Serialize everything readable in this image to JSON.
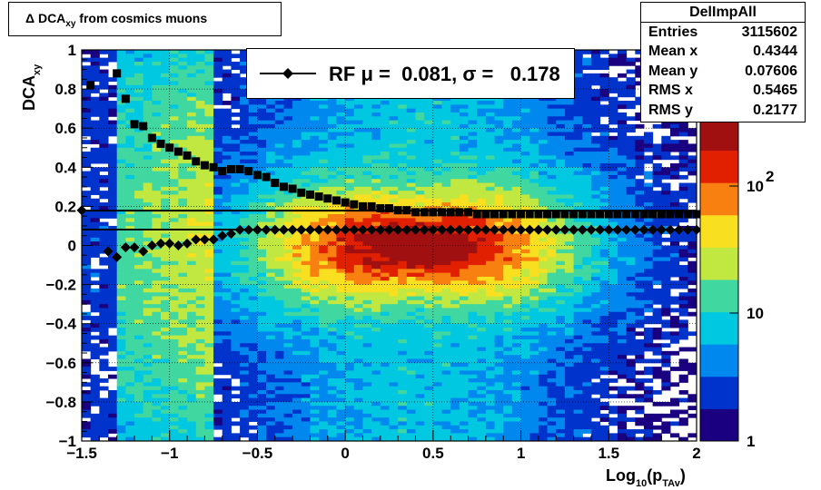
{
  "title": {
    "main": "Δ  DCA",
    "sub": "xy",
    "rest": "  from cosmics muons"
  },
  "stats": {
    "name": "DelImpAll",
    "rows": [
      {
        "label": "Entries",
        "value": "3115602"
      },
      {
        "label": "Mean x",
        "value": "0.4344"
      },
      {
        "label": "Mean y",
        "value": "0.07606"
      },
      {
        "label": "RMS x",
        "value": "0.5465"
      },
      {
        "label": "RMS y",
        "value": "0.2177"
      }
    ]
  },
  "legend": {
    "text": "RF μ =  0.081, σ =   0.178"
  },
  "chart_data": {
    "type": "heatmap",
    "xlabel": {
      "main": "Log",
      "sub1": "10",
      "mid": "(p",
      "sub2": "TAv",
      "end": ")"
    },
    "ylabel": {
      "main": "DCA",
      "sub": "xy"
    },
    "xlim": [
      -1.5,
      2
    ],
    "ylim": [
      -1,
      1
    ],
    "x_ticks": [
      "−1.5",
      "−1",
      "−0.5",
      "0",
      "0.5",
      "1",
      "1.5",
      "2"
    ],
    "y_ticks": [
      "−1",
      "−0.8",
      "−0.6",
      "−0.4",
      "−0.2",
      "0",
      "0.2",
      "0.4",
      "0.6",
      "0.8",
      "1"
    ],
    "z_scale": "log",
    "z_ticks": [
      "1",
      "10",
      "10^2"
    ],
    "grid": true,
    "colors": [
      "#1a0080",
      "#0033cc",
      "#0088ee",
      "#00c8e0",
      "#40d8a0",
      "#c0e840",
      "#f8e020",
      "#f88010",
      "#e02000",
      "#a01010"
    ],
    "peak": {
      "x": 0.4,
      "y": 0.0
    },
    "series": [
      {
        "name": "sigma",
        "marker": "square",
        "x": [
          -1.45,
          -1.3,
          -1.25,
          -1.2,
          -1.15,
          -1.1,
          -1.05,
          -1.0,
          -0.95,
          -0.9,
          -0.85,
          -0.8,
          -0.75,
          -0.7,
          -0.65,
          -0.6,
          -0.55,
          -0.5,
          -0.45,
          -0.4,
          -0.35,
          -0.3,
          -0.25,
          -0.2,
          -0.15,
          -0.1,
          -0.05,
          0.0,
          0.05,
          0.1,
          0.15,
          0.2,
          0.25,
          0.3,
          0.35,
          0.4,
          0.45,
          0.5,
          0.55,
          0.6,
          0.65,
          0.7,
          0.75,
          0.8,
          0.85,
          0.9,
          0.95,
          1.0,
          1.05,
          1.1,
          1.15,
          1.2,
          1.25,
          1.3,
          1.35,
          1.4,
          1.45,
          1.5,
          1.55,
          1.6,
          1.65,
          1.7,
          1.75,
          1.8,
          1.85,
          1.9,
          1.95,
          2.0
        ],
        "y": [
          0.82,
          0.88,
          0.75,
          0.62,
          0.61,
          0.55,
          0.52,
          0.5,
          0.48,
          0.46,
          0.43,
          0.41,
          0.4,
          0.38,
          0.39,
          0.39,
          0.38,
          0.36,
          0.35,
          0.32,
          0.3,
          0.29,
          0.27,
          0.26,
          0.25,
          0.24,
          0.23,
          0.22,
          0.21,
          0.2,
          0.2,
          0.19,
          0.19,
          0.18,
          0.18,
          0.17,
          0.17,
          0.17,
          0.17,
          0.17,
          0.17,
          0.17,
          0.16,
          0.16,
          0.16,
          0.16,
          0.16,
          0.16,
          0.16,
          0.16,
          0.16,
          0.16,
          0.16,
          0.16,
          0.16,
          0.16,
          0.16,
          0.16,
          0.16,
          0.16,
          0.16,
          0.16,
          0.16,
          0.16,
          0.16,
          0.16,
          0.16,
          0.16
        ]
      },
      {
        "name": "mean",
        "marker": "diamond",
        "x": [
          -1.5,
          -1.35,
          -1.3,
          -1.25,
          -1.2,
          -1.15,
          -1.1,
          -1.05,
          -1.0,
          -0.95,
          -0.9,
          -0.85,
          -0.8,
          -0.75,
          -0.7,
          -0.65,
          -0.6,
          -0.55,
          -0.5,
          -0.45,
          -0.4,
          -0.35,
          -0.3,
          -0.25,
          -0.2,
          -0.15,
          -0.1,
          -0.05,
          0.0,
          0.05,
          0.1,
          0.15,
          0.2,
          0.25,
          0.3,
          0.35,
          0.4,
          0.45,
          0.5,
          0.55,
          0.6,
          0.65,
          0.7,
          0.75,
          0.8,
          0.85,
          0.9,
          0.95,
          1.0,
          1.05,
          1.1,
          1.15,
          1.2,
          1.25,
          1.3,
          1.35,
          1.4,
          1.45,
          1.5,
          1.55,
          1.6,
          1.65,
          1.7,
          1.75,
          1.8,
          1.85,
          1.9,
          1.95,
          2.0
        ],
        "y": [
          0.18,
          -0.03,
          -0.06,
          -0.01,
          -0.01,
          -0.03,
          0.0,
          0.01,
          0.01,
          0.0,
          0.01,
          0.03,
          0.03,
          0.03,
          0.05,
          0.06,
          0.08,
          0.08,
          0.08,
          0.08,
          0.08,
          0.08,
          0.08,
          0.08,
          0.08,
          0.08,
          0.08,
          0.08,
          0.08,
          0.08,
          0.08,
          0.08,
          0.08,
          0.08,
          0.08,
          0.08,
          0.08,
          0.08,
          0.08,
          0.08,
          0.08,
          0.08,
          0.08,
          0.08,
          0.08,
          0.08,
          0.08,
          0.08,
          0.08,
          0.08,
          0.08,
          0.08,
          0.08,
          0.08,
          0.08,
          0.08,
          0.08,
          0.08,
          0.08,
          0.08,
          0.08,
          0.08,
          0.08,
          0.08,
          0.08,
          0.08,
          0.08,
          0.08,
          0.08
        ]
      }
    ],
    "fit_lines": [
      {
        "name": "sigma-fit",
        "y": 0.178
      },
      {
        "name": "mean-fit",
        "y": 0.081
      }
    ]
  }
}
